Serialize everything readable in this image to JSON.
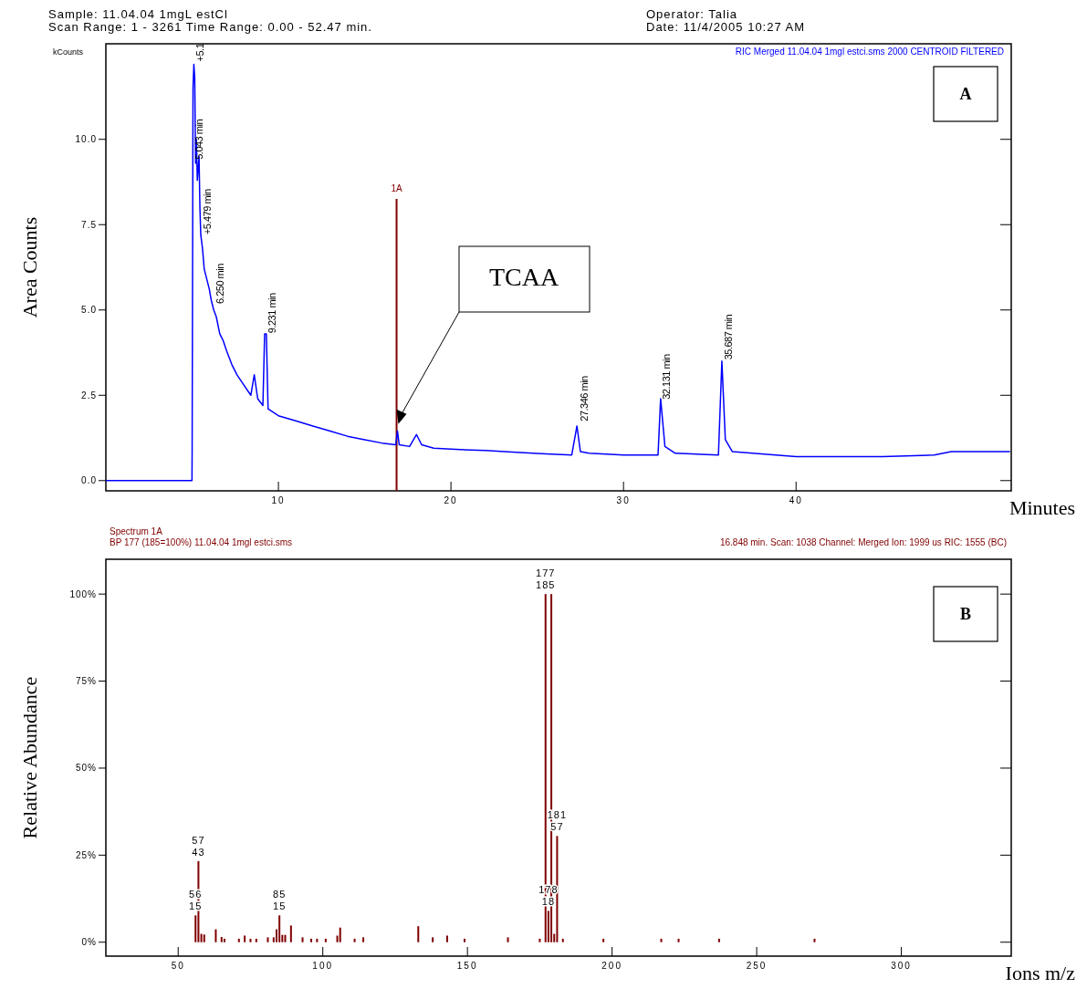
{
  "chart_data": [
    {
      "type": "line",
      "title": "Scan Range: 1 - 3261 Time Range: 0.00 - 52.47 min.",
      "subtitle": "Date: 11/4/2005 10:27 AM",
      "xlabel": "Minutes",
      "ylabel": "Area Counts",
      "color": "#0000ff",
      "xlim": [
        0,
        52.47
      ],
      "ylim": [
        -0.3,
        12.8
      ],
      "xticks": [
        10,
        20,
        30,
        40
      ],
      "yticks": [
        {
          "value": 0,
          "label": "0.0"
        },
        {
          "value": 2.5,
          "label": "2.5"
        },
        {
          "value": 5,
          "label": "5.0"
        },
        {
          "value": 7.5,
          "label": "7.5"
        },
        {
          "value": 10,
          "label": "10.0"
        }
      ],
      "x": [
        0,
        4.99,
        5.0,
        5.05,
        5.1,
        5.15,
        5.2,
        5.25,
        5.3,
        5.4,
        5.45,
        5.5,
        5.6,
        5.7,
        5.8,
        6.0,
        6.1,
        6.25,
        6.4,
        6.6,
        6.8,
        7.0,
        7.3,
        7.6,
        8.0,
        8.4,
        8.6,
        8.8,
        9.1,
        9.2,
        9.3,
        9.4,
        10,
        11,
        12,
        13,
        14,
        15,
        16,
        16.8,
        16.9,
        17.0,
        17.6,
        18.0,
        18.3,
        19,
        20,
        22,
        24,
        25.5,
        27.0,
        27.3,
        27.5,
        28,
        30,
        32.0,
        32.15,
        32.4,
        33,
        35.5,
        35.7,
        35.9,
        36.3,
        40,
        45,
        48,
        49,
        52.4
      ],
      "values": [
        0,
        0,
        0.9,
        11.5,
        12.2,
        11.8,
        9.3,
        10.0,
        8.8,
        9.5,
        8.0,
        7.2,
        6.8,
        6.2,
        6.0,
        5.6,
        5.3,
        5.0,
        4.8,
        4.3,
        4.1,
        3.8,
        3.4,
        3.1,
        2.8,
        2.5,
        3.1,
        2.4,
        2.2,
        4.3,
        4.3,
        2.1,
        1.9,
        1.75,
        1.6,
        1.45,
        1.3,
        1.2,
        1.1,
        1.05,
        1.45,
        1.05,
        1.0,
        1.35,
        1.05,
        0.95,
        0.92,
        0.88,
        0.82,
        0.78,
        0.75,
        1.6,
        0.85,
        0.8,
        0.75,
        0.75,
        2.4,
        1.0,
        0.8,
        0.75,
        3.5,
        1.2,
        0.85,
        0.7,
        0.7,
        0.75,
        0.85,
        0.85
      ],
      "ref_lines": [
        {
          "axis": "x",
          "value": 16.848,
          "label": "1A",
          "color": "#800000"
        }
      ],
      "annotations": [
        "Sample: 11.04.04 1mgL estCl",
        "Operator: Talia",
        "kCounts",
        "RIC Merged 11.04.04 1mgl estci.sms  2000 CENTROID FILTERED",
        "A",
        {
          "text": "+5.1",
          "x": 5.1,
          "y": 12.2
        },
        {
          "text": "5.043 min",
          "x": 5.043,
          "y": 9.33
        },
        {
          "text": "+5.479 min",
          "x": 5.479,
          "y": 7.13
        },
        {
          "text": "6.250 min",
          "x": 6.25,
          "y": 5.1
        },
        {
          "text": "9.231 min",
          "x": 9.231,
          "y": 4.24
        },
        {
          "text": "27.346 min",
          "x": 27.346,
          "y": 1.66
        },
        {
          "text": "32.131 min",
          "x": 32.131,
          "y": 2.3
        },
        {
          "text": "35.687 min",
          "x": 35.687,
          "y": 3.46
        },
        "TCAA"
      ]
    },
    {
      "type": "bar",
      "xlabel": "Ions m/z",
      "ylabel": "Relative Abundance",
      "color": "#800000",
      "xlim": [
        25,
        338
      ],
      "ylim": [
        -4,
        110
      ],
      "xticks": [
        50,
        100,
        150,
        200,
        250,
        300
      ],
      "yticks": [
        {
          "value": 0,
          "label": "0%"
        },
        {
          "value": 25,
          "label": "25%"
        },
        {
          "value": 50,
          "label": "50%"
        },
        {
          "value": 75,
          "label": "75%"
        },
        {
          "value": 100,
          "label": "100%"
        }
      ],
      "x": [
        56,
        57,
        58,
        59,
        63,
        65,
        66,
        71,
        73,
        75,
        77,
        81,
        83,
        84,
        85,
        86,
        87,
        89,
        93,
        96,
        98,
        101,
        105,
        106,
        111,
        114,
        133,
        138,
        143,
        149,
        164,
        175,
        177,
        178,
        179,
        180,
        181,
        183,
        197,
        217,
        223,
        237,
        270
      ],
      "values": [
        7.7,
        23.3,
        2.4,
        2.2,
        3.7,
        1.5,
        1.0,
        1.0,
        1.9,
        1.0,
        1.0,
        1.4,
        1.4,
        3.7,
        7.7,
        2.1,
        2.1,
        4.8,
        1.4,
        1.0,
        1.0,
        1.0,
        1.9,
        4.2,
        1.0,
        1.4,
        4.6,
        1.4,
        1.9,
        1.0,
        1.4,
        1.0,
        100,
        9.0,
        100,
        2.4,
        30.5,
        1.0,
        1.0,
        1.0,
        1.0,
        1.0,
        1.0
      ],
      "annotations": [
        "Spectrum 1A",
        "BP 177 (185=100%) 11.04.04 1mgl estci.sms",
        "16.848 min. Scan: 1038 Channel: Merged Ion: 1999 us RIC: 1555 (BC)",
        "B",
        {
          "text": "177\n185",
          "x": 177,
          "y": 100
        },
        {
          "text": "181\n57",
          "x": 181,
          "y": 30.5
        },
        {
          "text": "178\n18",
          "x": 178,
          "y": 9.0
        },
        {
          "text": "57\n43",
          "x": 57,
          "y": 23.3
        },
        {
          "text": "56\n15",
          "x": 56,
          "y": 7.7
        },
        {
          "text": "85\n15",
          "x": 85,
          "y": 7.7
        }
      ]
    }
  ]
}
